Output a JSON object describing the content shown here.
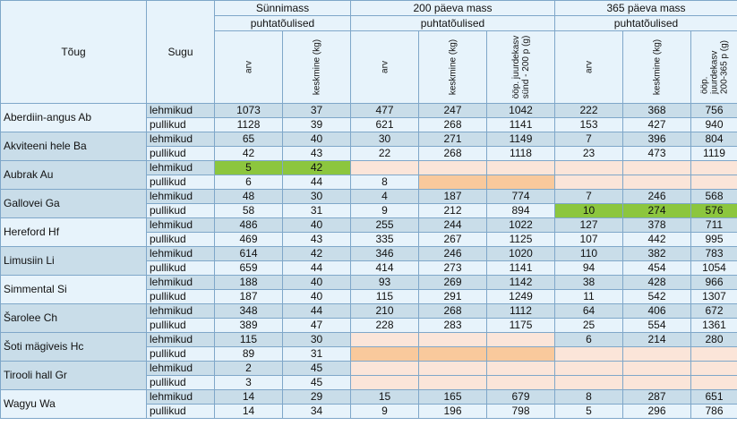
{
  "headers": {
    "breed": "Tõug",
    "sex": "Sugu",
    "groups": [
      "Sünnimass",
      "200 päeva mass",
      "365 päeva mass"
    ],
    "subgroup": "puhtatõulised",
    "cols": [
      "arv",
      "keskmine (kg)",
      "arv",
      "keskmine (kg)",
      "ööp. juurdekasv\nsünd - 200 p (g)",
      "arv",
      "keskmine (kg)",
      "ööp.\njuurdekasv\n200-365 p (g)"
    ]
  },
  "rows": [
    {
      "breed": "Aberdiin-angus  Ab",
      "sex": "lehmikud",
      "v": [
        "1073",
        "37",
        "477",
        "247",
        "1042",
        "222",
        "368",
        "756"
      ]
    },
    {
      "breed": "",
      "sex": "pullikud",
      "v": [
        "1128",
        "39",
        "621",
        "268",
        "1141",
        "153",
        "427",
        "940"
      ]
    },
    {
      "breed": "Akviteeni hele Ba",
      "sex": "lehmikud",
      "v": [
        "65",
        "40",
        "30",
        "271",
        "1149",
        "7",
        "396",
        "804"
      ]
    },
    {
      "breed": "",
      "sex": "pullikud",
      "v": [
        "42",
        "43",
        "22",
        "268",
        "1118",
        "23",
        "473",
        "1119"
      ]
    },
    {
      "breed": "Aubrak Au",
      "sex": "lehmikud",
      "v": [
        "5",
        "42",
        "",
        "",
        "",
        "",
        "",
        ""
      ]
    },
    {
      "breed": "",
      "sex": "pullikud",
      "v": [
        "6",
        "44",
        "8",
        "",
        "",
        "",
        "",
        ""
      ]
    },
    {
      "breed": "Gallovei Ga",
      "sex": "lehmikud",
      "v": [
        "48",
        "30",
        "4",
        "187",
        "774",
        "7",
        "246",
        "568"
      ]
    },
    {
      "breed": "",
      "sex": "pullikud",
      "v": [
        "58",
        "31",
        "9",
        "212",
        "894",
        "10",
        "274",
        "576"
      ]
    },
    {
      "breed": "Hereford Hf",
      "sex": "lehmikud",
      "v": [
        "486",
        "40",
        "255",
        "244",
        "1022",
        "127",
        "378",
        "711"
      ]
    },
    {
      "breed": "",
      "sex": "pullikud",
      "v": [
        "469",
        "43",
        "335",
        "267",
        "1125",
        "107",
        "442",
        "995"
      ]
    },
    {
      "breed": "Limusiin Li",
      "sex": "lehmikud",
      "v": [
        "614",
        "42",
        "346",
        "246",
        "1020",
        "110",
        "382",
        "783"
      ]
    },
    {
      "breed": "",
      "sex": "pullikud",
      "v": [
        "659",
        "44",
        "414",
        "273",
        "1141",
        "94",
        "454",
        "1054"
      ]
    },
    {
      "breed": "Simmental Si",
      "sex": "lehmikud",
      "v": [
        "188",
        "40",
        "93",
        "269",
        "1142",
        "38",
        "428",
        "966"
      ]
    },
    {
      "breed": "",
      "sex": "pullikud",
      "v": [
        "187",
        "40",
        "115",
        "291",
        "1249",
        "11",
        "542",
        "1307"
      ]
    },
    {
      "breed": "Šarolee Ch",
      "sex": "lehmikud",
      "v": [
        "348",
        "44",
        "210",
        "268",
        "1112",
        "64",
        "406",
        "672"
      ]
    },
    {
      "breed": "",
      "sex": "pullikud",
      "v": [
        "389",
        "47",
        "228",
        "283",
        "1175",
        "25",
        "554",
        "1361"
      ]
    },
    {
      "breed": "Šoti mägiveis Hc",
      "sex": "lehmikud",
      "v": [
        "115",
        "30",
        "",
        "",
        "",
        "6",
        "214",
        "280"
      ]
    },
    {
      "breed": "",
      "sex": "pullikud",
      "v": [
        "89",
        "31",
        "",
        "",
        "",
        "",
        "",
        ""
      ]
    },
    {
      "breed": "Tirooli hall Gr",
      "sex": "lehmikud",
      "v": [
        "2",
        "45",
        "",
        "",
        "",
        "",
        "",
        ""
      ]
    },
    {
      "breed": "",
      "sex": "pullikud",
      "v": [
        "3",
        "45",
        "",
        "",
        "",
        "",
        "",
        ""
      ]
    },
    {
      "breed": "Wagyu Wa",
      "sex": "lehmikud",
      "v": [
        "14",
        "29",
        "15",
        "165",
        "679",
        "8",
        "287",
        "651"
      ]
    },
    {
      "breed": "",
      "sex": "pullikud",
      "v": [
        "14",
        "34",
        "9",
        "196",
        "798",
        "5",
        "296",
        "786"
      ]
    }
  ],
  "colors": {
    "band_dark": "#c9dde9",
    "band_light": "#e7f3fb",
    "highlight_green": "#8cc63e",
    "highlight_orange": "#f9c99c",
    "empty_peach": "#fbe5d9",
    "border": "#7fa7c9"
  }
}
